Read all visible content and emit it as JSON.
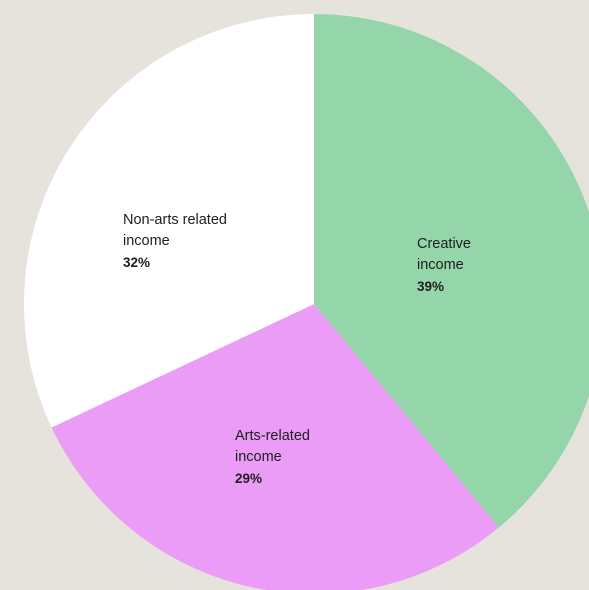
{
  "chart_data": {
    "type": "pie",
    "title": "",
    "slices": [
      {
        "label": "Creative\nincome",
        "value": 39,
        "value_label": "39%",
        "color": "#95d5aa"
      },
      {
        "label": "Arts-related\nincome",
        "value": 29,
        "value_label": "29%",
        "color": "#ea9cf7"
      },
      {
        "label": "Non-arts related\nincome",
        "value": 32,
        "value_label": "32%",
        "color": "#ffffff"
      }
    ],
    "start_angle": "top (12 o'clock), clockwise",
    "legend": "none (labels inside slices)"
  },
  "colors": {
    "background": "#e5e3dc",
    "text": "#1e1e1e"
  }
}
